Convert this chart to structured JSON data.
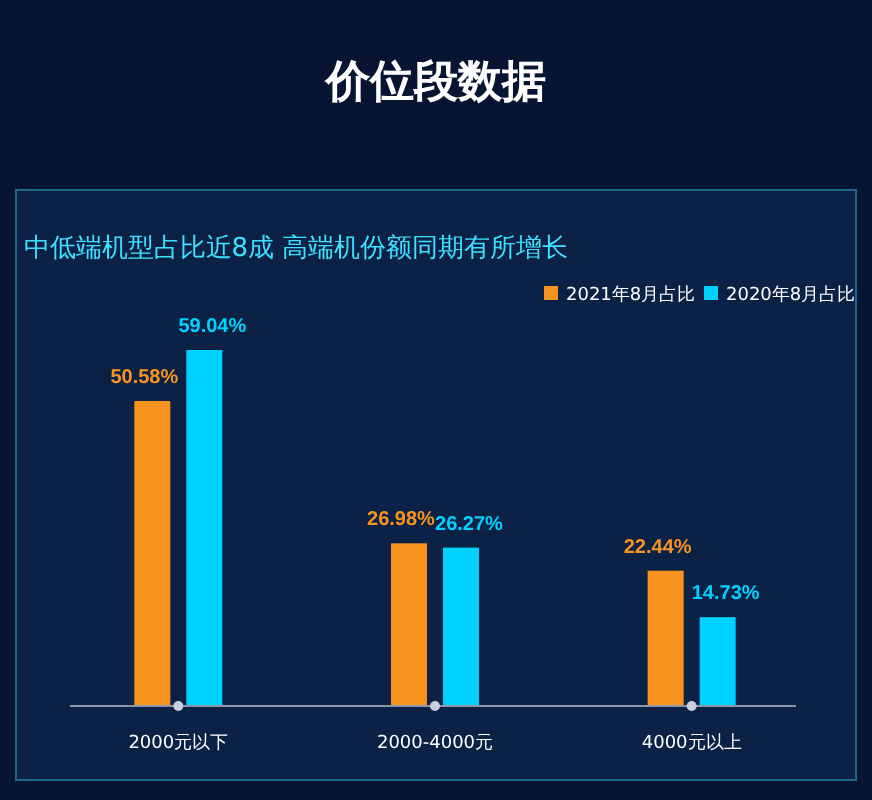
{
  "chart_data": {
    "type": "bar",
    "title": "价位段数据",
    "subtitle": "中低端机型占比近8成 高端机份额同期有所增长",
    "categories": [
      "2000元以下",
      "2000-4000元",
      "4000元以上"
    ],
    "series": [
      {
        "name": "2021年8月占比",
        "color": "#f7931e",
        "values": [
          50.58,
          26.98,
          22.44
        ],
        "value_labels": [
          "50.58%",
          "26.98%",
          "22.44%"
        ]
      },
      {
        "name": "2020年8月占比",
        "color": "#00d2ff",
        "values": [
          59.04,
          26.27,
          14.73
        ],
        "value_labels": [
          "59.04%",
          "26.27%",
          "14.73%"
        ]
      }
    ],
    "legend": "top right"
  }
}
